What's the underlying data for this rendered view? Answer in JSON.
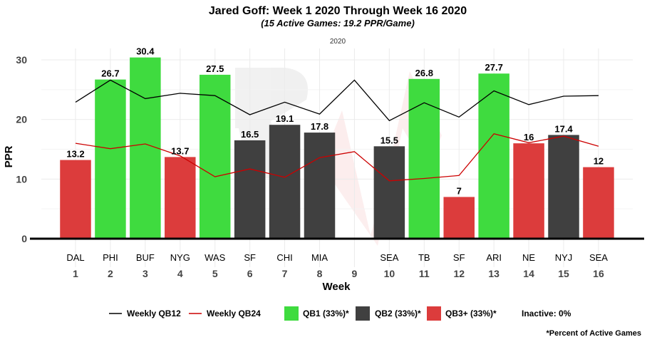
{
  "chart_data": {
    "type": "bar",
    "title": "Jared Goff: Week 1 2020 Through Week 16 2020",
    "subtitle": "(15 Active Games: 19.2 PPR/Game)",
    "facet_label": "2020",
    "xlabel": "Week",
    "ylabel": "PPR",
    "ylim": [
      0,
      30
    ],
    "yticks": [
      0,
      10,
      20,
      30
    ],
    "weeks": [
      "1",
      "2",
      "3",
      "4",
      "5",
      "6",
      "7",
      "8",
      "9",
      "10",
      "11",
      "12",
      "13",
      "14",
      "15",
      "16"
    ],
    "teams": [
      "DAL",
      "PHI",
      "BUF",
      "NYG",
      "WAS",
      "SF",
      "CHI",
      "MIA",
      "",
      "SEA",
      "TB",
      "SF",
      "ARI",
      "NE",
      "NYJ",
      "SEA"
    ],
    "values": [
      13.2,
      26.7,
      30.4,
      13.7,
      27.5,
      16.5,
      19.1,
      17.8,
      null,
      15.5,
      26.8,
      7,
      27.7,
      16,
      17.4,
      12
    ],
    "value_labels": [
      "13.2",
      "26.7",
      "30.4",
      "13.7",
      "27.5",
      "16.5",
      "19.1",
      "17.8",
      "",
      "15.5",
      "26.8",
      "7",
      "27.7",
      "16",
      "17.4",
      "12"
    ],
    "tiers": [
      "QB3+",
      "QB1",
      "QB1",
      "QB3+",
      "QB1",
      "QB2",
      "QB2",
      "QB2",
      "",
      "QB2",
      "QB1",
      "QB3+",
      "QB1",
      "QB3+",
      "QB2",
      "QB3+"
    ],
    "tier_colors": {
      "QB1": "#3fdb3f",
      "QB2": "#404040",
      "QB3+": "#dc3c3c"
    },
    "series": [
      {
        "name": "Weekly QB12",
        "color": "#000000",
        "values": [
          22.9,
          26.6,
          23.5,
          24.4,
          24.0,
          20.8,
          22.9,
          20.9,
          26.6,
          19.8,
          22.8,
          20.4,
          24.8,
          22.5,
          23.9,
          24.0
        ]
      },
      {
        "name": "Weekly QB24",
        "color": "#cc0000",
        "values": [
          16.0,
          15.1,
          15.9,
          13.9,
          10.4,
          11.7,
          10.3,
          13.6,
          14.6,
          9.7,
          10.1,
          10.6,
          17.6,
          16.1,
          17.2,
          15.5
        ]
      }
    ],
    "legend": {
      "items": [
        {
          "kind": "line",
          "label": "Weekly QB12",
          "color": "#000000"
        },
        {
          "kind": "line",
          "label": "Weekly QB24",
          "color": "#cc0000"
        },
        {
          "kind": "box",
          "label": "QB1 (33%)*",
          "color": "#3fdb3f"
        },
        {
          "kind": "box",
          "label": "QB2 (33%)*",
          "color": "#404040"
        },
        {
          "kind": "box",
          "label": "QB3+ (33%)*",
          "color": "#dc3c3c"
        },
        {
          "kind": "text",
          "label": "Inactive: 0%"
        }
      ],
      "placement": "bottom"
    },
    "footnote": "*Percent of Active Games",
    "grid": true
  }
}
